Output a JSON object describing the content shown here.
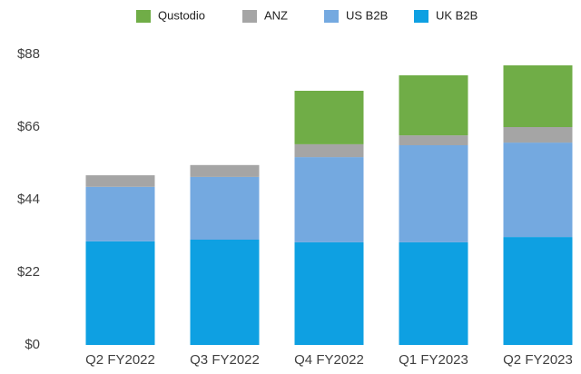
{
  "chart_data": {
    "type": "stacked_bar",
    "categories": [
      "Q2 FY2022",
      "Q3 FY2022",
      "Q4 FY2022",
      "Q1 FY2023",
      "Q2 FY2023"
    ],
    "series": [
      {
        "name": "Qustodio",
        "color": "#70ad47",
        "values": [
          0,
          0,
          16.2,
          18.2,
          18.7
        ]
      },
      {
        "name": "ANZ",
        "color": "#a5a5a5",
        "values": [
          3.5,
          3.6,
          3.9,
          3.0,
          4.7
        ]
      },
      {
        "name": "US B2B",
        "color": "#74a9e0",
        "values": [
          16.5,
          19.0,
          25.8,
          29.4,
          28.6
        ]
      },
      {
        "name": "UK B2B",
        "color": "#0ea0e2",
        "values": [
          31.4,
          31.9,
          31.1,
          31.1,
          32.7
        ]
      }
    ],
    "ylim": [
      0,
      88
    ],
    "yticks": [
      {
        "value": 0,
        "label": "$0"
      },
      {
        "value": 22,
        "label": "$22"
      },
      {
        "value": 44,
        "label": "$44"
      },
      {
        "value": 66,
        "label": "$66"
      },
      {
        "value": 88,
        "label": "$88"
      }
    ],
    "legend": "top"
  }
}
